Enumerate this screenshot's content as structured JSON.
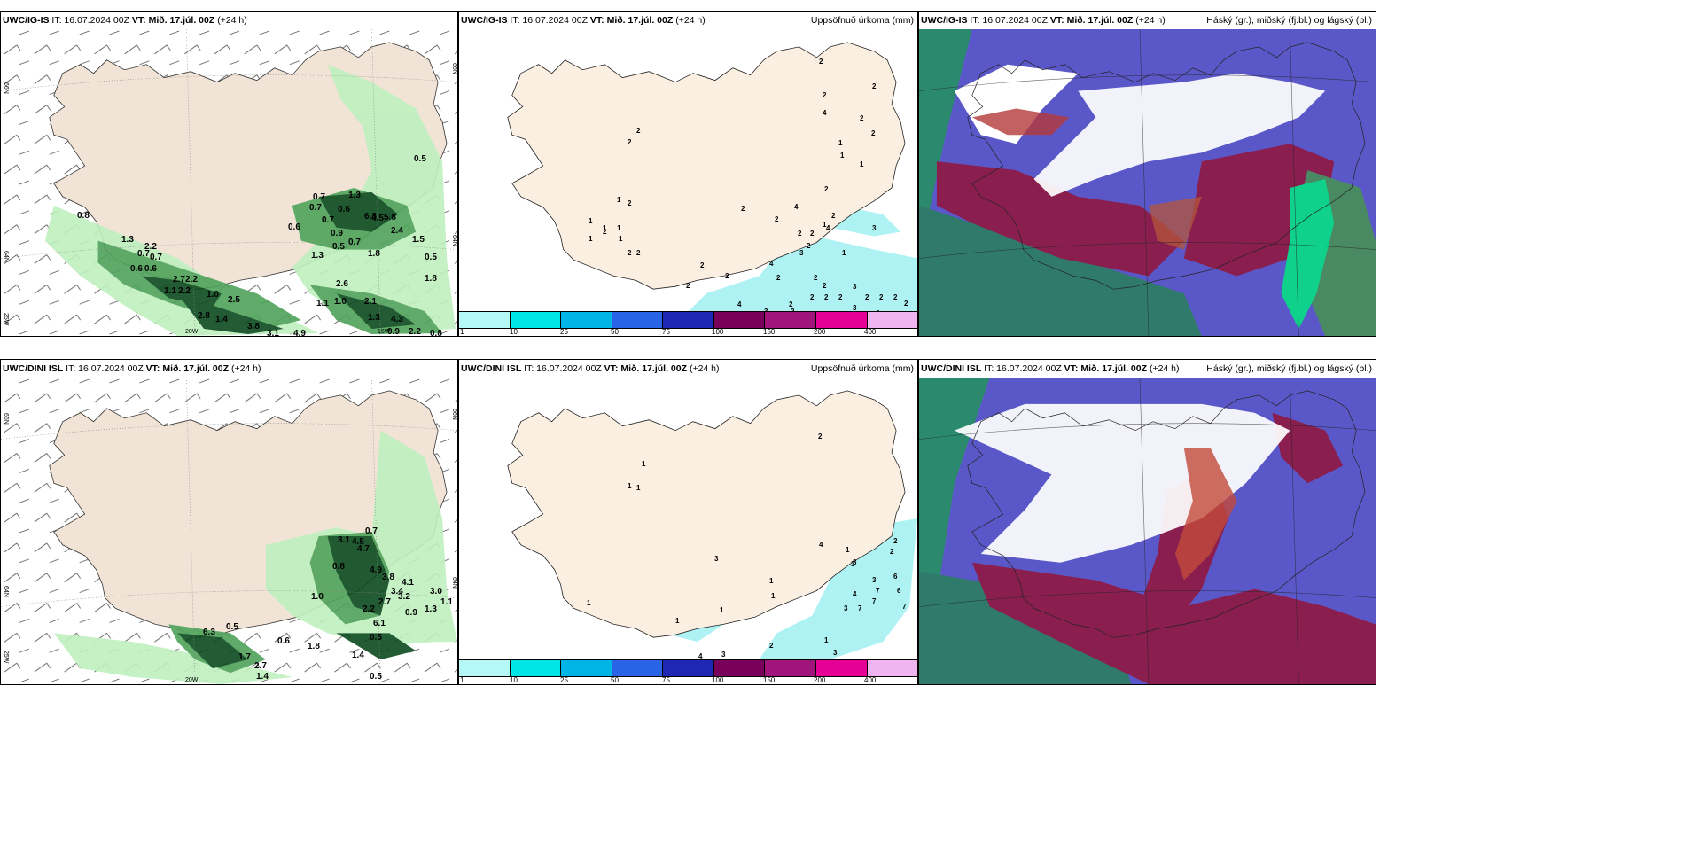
{
  "colors": {
    "land": "#f4e8db",
    "land_precip_panel": "#fbefe2",
    "precip_light": "#bff0bf",
    "precip_mid": "#4fa35a",
    "precip_dark": "#0b4a1f",
    "precip_cyan": "#aef2f4",
    "cloud_low": "#5a58c8",
    "cloud_mid": "#8a1f4f",
    "cloud_high": "#2b8a6e",
    "cloud_teal": "#10d18c"
  },
  "rows": [
    {
      "model": "UWC/IG-IS",
      "panels": [
        {
          "kind": "wind-precip",
          "title": {
            "model": "UWC/IG-IS",
            "it": "IT: 16.07.2024 00Z",
            "vt_label": "VT:",
            "vt": "Mið. 17.júl. 00Z",
            "lead": "(+24 h)"
          },
          "axes": {
            "lon_left": "20W",
            "lon_right": "15W",
            "lat_top": "66N",
            "lat_mid": "64N",
            "lat_bottom": "25W",
            "right_top": "66N",
            "right_mid": "64N"
          },
          "values": [
            "0.8",
            "1.3",
            "2.2",
            "0.7",
            "0.7",
            "0.6",
            "0.6",
            "2.7",
            "2.2",
            "1.1",
            "2.2",
            "1.0",
            "2.5",
            "2.8",
            "1.4",
            "3.8",
            "3.1",
            "4.9",
            "0.7",
            "0.7",
            "0.7",
            "0.6",
            "0.9",
            "0.7",
            "6.8",
            "4.5",
            "5.8",
            "2.4",
            "1.5",
            "0.5",
            "0.5",
            "1.8",
            "1.3",
            "1.1",
            "1.0",
            "2.6",
            "2.1",
            "1.3",
            "4.3",
            "0.9",
            "2.2",
            "0.8",
            "1.3",
            "1.8",
            "0.6",
            "0.5"
          ]
        },
        {
          "kind": "accum-precip",
          "title": {
            "model": "UWC/IG-IS",
            "it": "IT: 16.07.2024 00Z",
            "vt_label": "VT:",
            "vt": "Mið. 17.júl. 00Z",
            "lead": "(+24 h)",
            "right": "Uppsöfnuð úrkoma (mm)"
          },
          "values": [
            "2",
            "2",
            "2",
            "2",
            "1",
            "2",
            "2",
            "1",
            "1",
            "2",
            "1",
            "2",
            "2",
            "1",
            "1",
            "1",
            "1",
            "2",
            "1",
            "2",
            "2",
            "4",
            "2",
            "1",
            "1",
            "2",
            "2",
            "2",
            "2",
            "4",
            "2",
            "2",
            "2",
            "2",
            "2",
            "2",
            "3",
            "2",
            "2",
            "3",
            "4",
            "3",
            "2",
            "3",
            "2",
            "2",
            "2",
            "2",
            "2",
            "2",
            "4",
            "3",
            "2",
            "4",
            "3",
            "5",
            "4"
          ]
        },
        {
          "kind": "cloud-cover",
          "title": {
            "model": "UWC/IG-IS",
            "it": "IT: 16.07.2024 00Z",
            "vt_label": "VT:",
            "vt": "Mið. 17.júl. 00Z",
            "lead": "(+24 h)",
            "right": "Háský (gr.), miðský (fj.bl.) og lágský (bl.)"
          }
        }
      ]
    },
    {
      "model": "UWC/DINI ISL",
      "panels": [
        {
          "kind": "wind-precip",
          "title": {
            "model": "UWC/DINI ISL",
            "it": "IT: 16.07.2024 00Z",
            "vt_label": "VT:",
            "vt": "Mið. 17.júl. 00Z",
            "lead": "(+24 h)"
          },
          "axes": {
            "lon_left": "20W",
            "lon_right": "15W",
            "lat_top": "66N",
            "lat_mid": "64N",
            "lat_bottom": "25W",
            "right_top": "66N",
            "right_mid": "64N"
          },
          "values": [
            "0.7",
            "0.8",
            "3.1",
            "4.5",
            "4.7",
            "4.9",
            "3.8",
            "3.4",
            "4.1",
            "3.2",
            "1.0",
            "2.2",
            "2.7",
            "3.0",
            "0.9",
            "1.1",
            "1.3",
            "6.1",
            "0.5",
            "0.5",
            "6.3",
            "0.6",
            "1.8",
            "1.7",
            "2.7",
            "1.4",
            "1.4",
            "0.5"
          ]
        },
        {
          "kind": "accum-precip",
          "title": {
            "model": "UWC/DINI ISL",
            "it": "IT: 16.07.2024 00Z",
            "vt_label": "VT:",
            "vt": "Mið. 17.júl. 00Z",
            "lead": "(+24 h)",
            "right": "Uppsöfnuð úrkoma (mm)"
          },
          "values": [
            "2",
            "1",
            "1",
            "1",
            "1",
            "4",
            "3",
            "2",
            "6",
            "3",
            "7",
            "6",
            "7",
            "4",
            "3",
            "7",
            "7",
            "3",
            "1",
            "1",
            "3",
            "1",
            "1",
            "2",
            "1",
            "3",
            "4",
            "3",
            "2",
            "1"
          ]
        },
        {
          "kind": "cloud-cover",
          "title": {
            "model": "UWC/DINI ISL",
            "it": "IT: 16.07.2024 00Z",
            "vt_label": "VT:",
            "vt": "Mið. 17.júl. 00Z",
            "lead": "(+24 h)",
            "right": "Háský (gr.), miðský (fj.bl.) og lágský (bl.)"
          }
        }
      ]
    }
  ],
  "colorbar": {
    "ticks": [
      "1",
      "10",
      "25",
      "50",
      "75",
      "100",
      "150",
      "200",
      "400"
    ],
    "colors": [
      "#b4f8f8",
      "#00e6e6",
      "#00b4e6",
      "#2a64e6",
      "#1e28b4",
      "#78005a",
      "#a0147c",
      "#e60096",
      "#f0b4f0"
    ]
  }
}
